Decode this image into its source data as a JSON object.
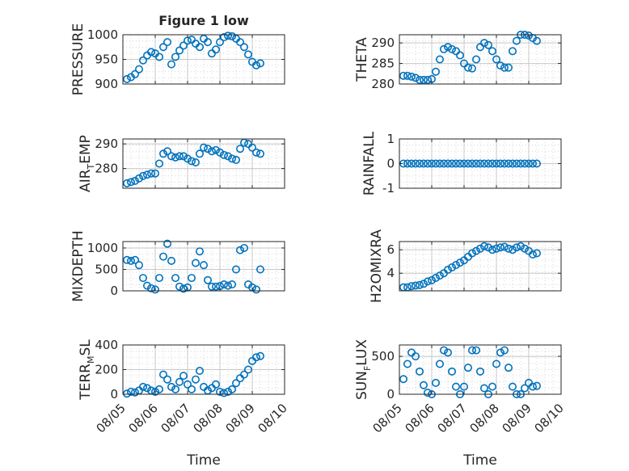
{
  "figure": {
    "title": "Figure 1 low",
    "xlabel": "Time",
    "marker_color": "#0072BD"
  },
  "x_tick_labels": [
    "08/05",
    "08/06",
    "08/07",
    "08/08",
    "08/09",
    "08/10"
  ],
  "chart_data": [
    {
      "type": "scatter",
      "title": "Figure 1 low",
      "xlabel": "",
      "ylabel": "PRESSURE",
      "ylim": [
        900,
        1000
      ],
      "yticks": [
        900,
        950,
        1000
      ],
      "xlim": [
        "08/05",
        "08/10"
      ],
      "grid": true,
      "x": [
        "08/05 03:00",
        "08/05 06:00",
        "08/05 09:00",
        "08/05 12:00",
        "08/05 15:00",
        "08/05 18:00",
        "08/05 21:00",
        "08/06 00:00",
        "08/06 03:00",
        "08/06 06:00",
        "08/06 09:00",
        "08/06 12:00",
        "08/06 15:00",
        "08/06 18:00",
        "08/06 21:00",
        "08/07 00:00",
        "08/07 03:00",
        "08/07 06:00",
        "08/07 09:00",
        "08/07 12:00",
        "08/07 15:00",
        "08/07 18:00",
        "08/07 21:00",
        "08/08 00:00",
        "08/08 03:00",
        "08/08 06:00",
        "08/08 09:00",
        "08/08 12:00",
        "08/08 15:00",
        "08/08 18:00",
        "08/08 21:00",
        "08/09 00:00",
        "08/09 03:00",
        "08/09 06:00"
      ],
      "y": [
        910,
        914,
        920,
        930,
        948,
        958,
        965,
        962,
        955,
        975,
        985,
        940,
        955,
        968,
        978,
        988,
        990,
        982,
        975,
        992,
        985,
        962,
        970,
        985,
        995,
        998,
        997,
        992,
        985,
        975,
        960,
        945,
        938,
        942
      ]
    },
    {
      "type": "scatter",
      "ylabel": "THETA",
      "ylim": [
        280,
        292
      ],
      "yticks": [
        280,
        285,
        290
      ],
      "xlim": [
        "08/05",
        "08/10"
      ],
      "grid": true,
      "x": [
        "08/05 03:00",
        "08/05 06:00",
        "08/05 09:00",
        "08/05 12:00",
        "08/05 15:00",
        "08/05 18:00",
        "08/05 21:00",
        "08/06 00:00",
        "08/06 03:00",
        "08/06 06:00",
        "08/06 09:00",
        "08/06 12:00",
        "08/06 15:00",
        "08/06 18:00",
        "08/06 21:00",
        "08/07 00:00",
        "08/07 03:00",
        "08/07 06:00",
        "08/07 09:00",
        "08/07 12:00",
        "08/07 15:00",
        "08/07 18:00",
        "08/07 21:00",
        "08/08 00:00",
        "08/08 03:00",
        "08/08 06:00",
        "08/08 09:00",
        "08/08 12:00",
        "08/08 15:00",
        "08/08 18:00",
        "08/08 21:00",
        "08/09 00:00",
        "08/09 03:00",
        "08/09 06:00"
      ],
      "y": [
        282,
        282,
        281.8,
        281.5,
        281,
        281,
        281,
        281.2,
        283,
        286,
        288.5,
        289,
        288.5,
        288,
        287,
        285,
        284,
        283.8,
        286,
        289,
        290,
        289.5,
        288,
        286,
        284.5,
        284,
        284,
        288,
        290.5,
        292,
        292,
        291.8,
        291.2,
        290.5
      ]
    },
    {
      "type": "scatter",
      "ylabel": "AIR_TEMP",
      "ylabel_parts": [
        "AIR",
        "T",
        "EMP"
      ],
      "ylim": [
        272,
        292
      ],
      "yticks": [
        280,
        290
      ],
      "xlim": [
        "08/05",
        "08/10"
      ],
      "grid": true,
      "x": [
        "08/05 03:00",
        "08/05 06:00",
        "08/05 09:00",
        "08/05 12:00",
        "08/05 15:00",
        "08/05 18:00",
        "08/05 21:00",
        "08/06 00:00",
        "08/06 03:00",
        "08/06 06:00",
        "08/06 09:00",
        "08/06 12:00",
        "08/06 15:00",
        "08/06 18:00",
        "08/06 21:00",
        "08/07 00:00",
        "08/07 03:00",
        "08/07 06:00",
        "08/07 09:00",
        "08/07 12:00",
        "08/07 15:00",
        "08/07 18:00",
        "08/07 21:00",
        "08/08 00:00",
        "08/08 03:00",
        "08/08 06:00",
        "08/08 09:00",
        "08/08 12:00",
        "08/08 15:00",
        "08/08 18:00",
        "08/08 21:00",
        "08/09 00:00",
        "08/09 03:00",
        "08/09 06:00"
      ],
      "y": [
        274,
        274.5,
        275,
        276,
        277,
        277.5,
        278,
        278,
        282,
        286,
        287,
        285,
        284.5,
        285,
        285,
        284,
        283,
        282.5,
        286,
        288.5,
        288,
        287,
        287.5,
        286.5,
        285.5,
        285,
        284,
        283.5,
        288,
        290.5,
        290,
        288.5,
        286.5,
        286
      ]
    },
    {
      "type": "scatter",
      "ylabel": "RAINFALL",
      "ylim": [
        -1,
        1
      ],
      "yticks": [
        -1,
        0,
        1
      ],
      "xlim": [
        "08/05",
        "08/10"
      ],
      "grid": true,
      "x": [
        "08/05 03:00",
        "08/05 06:00",
        "08/05 09:00",
        "08/05 12:00",
        "08/05 15:00",
        "08/05 18:00",
        "08/05 21:00",
        "08/06 00:00",
        "08/06 03:00",
        "08/06 06:00",
        "08/06 09:00",
        "08/06 12:00",
        "08/06 15:00",
        "08/06 18:00",
        "08/06 21:00",
        "08/07 00:00",
        "08/07 03:00",
        "08/07 06:00",
        "08/07 09:00",
        "08/07 12:00",
        "08/07 15:00",
        "08/07 18:00",
        "08/07 21:00",
        "08/08 00:00",
        "08/08 03:00",
        "08/08 06:00",
        "08/08 09:00",
        "08/08 12:00",
        "08/08 15:00",
        "08/08 18:00",
        "08/08 21:00",
        "08/09 00:00",
        "08/09 03:00",
        "08/09 06:00"
      ],
      "y": [
        0,
        0,
        0,
        0,
        0,
        0,
        0,
        0,
        0,
        0,
        0,
        0,
        0,
        0,
        0,
        0,
        0,
        0,
        0,
        0,
        0,
        0,
        0,
        0,
        0,
        0,
        0,
        0,
        0,
        0,
        0,
        0,
        0,
        0
      ]
    },
    {
      "type": "scatter",
      "ylabel": "MIXDEPTH",
      "ylim": [
        0,
        1150
      ],
      "yticks": [
        0,
        500,
        1000
      ],
      "xlim": [
        "08/05",
        "08/10"
      ],
      "grid": true,
      "x": [
        "08/05 03:00",
        "08/05 06:00",
        "08/05 09:00",
        "08/05 12:00",
        "08/05 15:00",
        "08/05 18:00",
        "08/05 21:00",
        "08/06 00:00",
        "08/06 03:00",
        "08/06 06:00",
        "08/06 09:00",
        "08/06 12:00",
        "08/06 15:00",
        "08/06 18:00",
        "08/06 21:00",
        "08/07 00:00",
        "08/07 03:00",
        "08/07 06:00",
        "08/07 09:00",
        "08/07 12:00",
        "08/07 15:00",
        "08/07 18:00",
        "08/07 21:00",
        "08/08 00:00",
        "08/08 03:00",
        "08/08 06:00",
        "08/08 09:00",
        "08/08 12:00",
        "08/08 15:00",
        "08/08 18:00",
        "08/08 21:00",
        "08/09 00:00",
        "08/09 03:00",
        "08/09 06:00"
      ],
      "y": [
        720,
        700,
        720,
        600,
        300,
        120,
        60,
        30,
        300,
        800,
        1100,
        700,
        300,
        100,
        50,
        80,
        300,
        650,
        920,
        600,
        250,
        100,
        100,
        110,
        150,
        120,
        150,
        500,
        950,
        1000,
        150,
        80,
        30,
        500
      ]
    },
    {
      "type": "scatter",
      "ylabel": "H2OMIXRA",
      "ylim": [
        2.5,
        6.7
      ],
      "yticks": [
        4,
        6
      ],
      "xlim": [
        "08/05",
        "08/10"
      ],
      "grid": true,
      "x": [
        "08/05 03:00",
        "08/05 06:00",
        "08/05 09:00",
        "08/05 12:00",
        "08/05 15:00",
        "08/05 18:00",
        "08/05 21:00",
        "08/06 00:00",
        "08/06 03:00",
        "08/06 06:00",
        "08/06 09:00",
        "08/06 12:00",
        "08/06 15:00",
        "08/06 18:00",
        "08/06 21:00",
        "08/07 00:00",
        "08/07 03:00",
        "08/07 06:00",
        "08/07 09:00",
        "08/07 12:00",
        "08/07 15:00",
        "08/07 18:00",
        "08/07 21:00",
        "08/08 00:00",
        "08/08 03:00",
        "08/08 06:00",
        "08/08 09:00",
        "08/08 12:00",
        "08/08 15:00",
        "08/08 18:00",
        "08/08 21:00",
        "08/09 00:00",
        "08/09 03:00",
        "08/09 06:00"
      ],
      "y": [
        2.8,
        2.8,
        2.9,
        2.95,
        3.0,
        3.1,
        3.3,
        3.4,
        3.6,
        3.8,
        4.0,
        4.3,
        4.5,
        4.7,
        4.9,
        5.1,
        5.4,
        5.7,
        5.9,
        6.1,
        6.3,
        6.2,
        6.0,
        6.1,
        6.2,
        6.25,
        6.1,
        6.0,
        6.2,
        6.3,
        6.1,
        5.9,
        5.6,
        5.7
      ]
    },
    {
      "type": "scatter",
      "ylabel": "TERR_MSL",
      "ylabel_parts": [
        "TERR",
        "M",
        "SL"
      ],
      "ylim": [
        0,
        400
      ],
      "yticks": [
        0,
        200,
        400
      ],
      "xlim": [
        "08/05",
        "08/10"
      ],
      "grid": true,
      "x": [
        "08/05 03:00",
        "08/05 06:00",
        "08/05 09:00",
        "08/05 12:00",
        "08/05 15:00",
        "08/05 18:00",
        "08/05 21:00",
        "08/06 00:00",
        "08/06 03:00",
        "08/06 06:00",
        "08/06 09:00",
        "08/06 12:00",
        "08/06 15:00",
        "08/06 18:00",
        "08/06 21:00",
        "08/07 00:00",
        "08/07 03:00",
        "08/07 06:00",
        "08/07 09:00",
        "08/07 12:00",
        "08/07 15:00",
        "08/07 18:00",
        "08/07 21:00",
        "08/08 00:00",
        "08/08 03:00",
        "08/08 06:00",
        "08/08 09:00",
        "08/08 12:00",
        "08/08 15:00",
        "08/08 18:00",
        "08/08 21:00",
        "08/09 00:00",
        "08/09 03:00",
        "08/09 06:00"
      ],
      "y": [
        5,
        20,
        15,
        30,
        60,
        50,
        30,
        20,
        40,
        160,
        120,
        60,
        40,
        100,
        150,
        80,
        40,
        120,
        190,
        60,
        30,
        50,
        80,
        20,
        10,
        20,
        40,
        90,
        130,
        160,
        200,
        270,
        300,
        310
      ]
    },
    {
      "type": "scatter",
      "ylabel": "SUN_FLUX",
      "ylabel_parts": [
        "SUN",
        "F",
        "LUX"
      ],
      "ylim": [
        0,
        650
      ],
      "yticks": [
        0,
        500
      ],
      "xlim": [
        "08/05",
        "08/10"
      ],
      "grid": true,
      "x": [
        "08/05 03:00",
        "08/05 06:00",
        "08/05 09:00",
        "08/05 12:00",
        "08/05 15:00",
        "08/05 18:00",
        "08/05 21:00",
        "08/06 00:00",
        "08/06 03:00",
        "08/06 06:00",
        "08/06 09:00",
        "08/06 12:00",
        "08/06 15:00",
        "08/06 18:00",
        "08/06 21:00",
        "08/07 00:00",
        "08/07 03:00",
        "08/07 06:00",
        "08/07 09:00",
        "08/07 12:00",
        "08/07 15:00",
        "08/07 18:00",
        "08/07 21:00",
        "08/08 00:00",
        "08/08 03:00",
        "08/08 06:00",
        "08/08 09:00",
        "08/08 12:00",
        "08/08 15:00",
        "08/08 18:00",
        "08/08 21:00",
        "08/09 00:00",
        "08/09 03:00",
        "08/09 06:00"
      ],
      "y": [
        200,
        400,
        550,
        500,
        300,
        120,
        20,
        0,
        150,
        400,
        580,
        550,
        300,
        100,
        0,
        100,
        350,
        580,
        580,
        300,
        80,
        0,
        100,
        400,
        550,
        580,
        350,
        100,
        0,
        0,
        80,
        150,
        100,
        110
      ]
    }
  ]
}
